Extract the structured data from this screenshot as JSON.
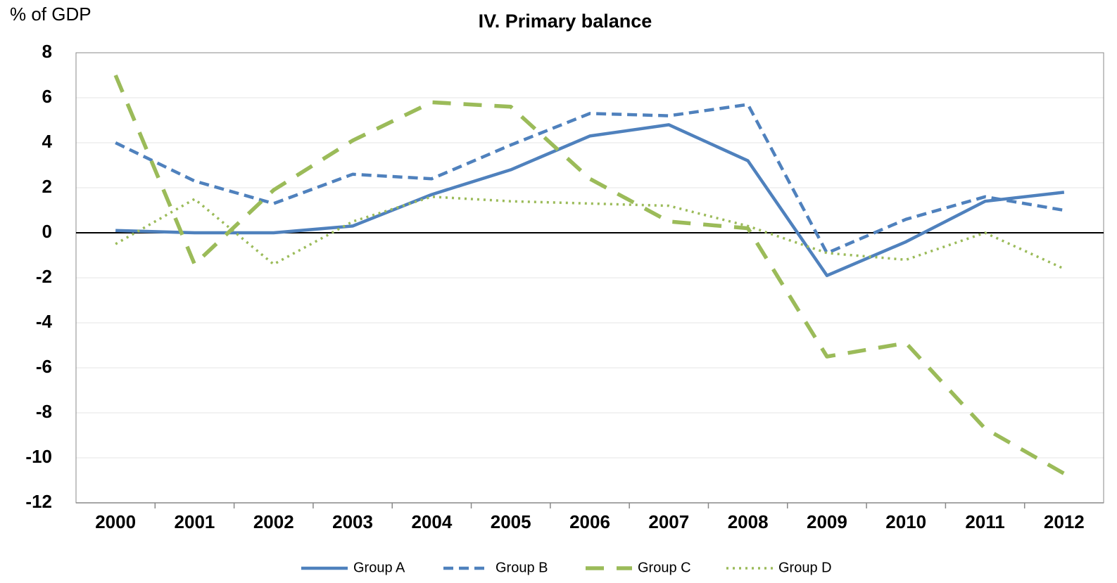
{
  "chart_data": {
    "type": "line",
    "title": "IV. Primary balance",
    "y_label": "% of GDP",
    "categories": [
      "2000",
      "2001",
      "2002",
      "2003",
      "2004",
      "2005",
      "2006",
      "2007",
      "2008",
      "2009",
      "2010",
      "2011",
      "2012"
    ],
    "series": [
      {
        "name": "Group A",
        "color": "#4f81bd",
        "line_style": "solid",
        "values": [
          0.1,
          0,
          0,
          0.3,
          1.7,
          2.8,
          4.3,
          4.8,
          3.2,
          -1.9,
          -0.4,
          1.4,
          1.8
        ]
      },
      {
        "name": "Group B",
        "color": "#4f81bd",
        "line_style": "dash",
        "values": [
          4.0,
          2.3,
          1.3,
          2.6,
          2.4,
          3.9,
          5.3,
          5.2,
          5.7,
          -0.9,
          0.6,
          1.6,
          1.0
        ]
      },
      {
        "name": "Group C",
        "color": "#9bbb59",
        "line_style": "long-dash",
        "values": [
          7.0,
          -1.4,
          1.9,
          4.1,
          5.8,
          5.6,
          2.4,
          0.5,
          0.2,
          -5.5,
          -4.9,
          -8.7,
          -10.7
        ]
      },
      {
        "name": "Group D",
        "color": "#9bbb59",
        "line_style": "dot",
        "values": [
          -0.5,
          1.5,
          -1.4,
          0.5,
          1.6,
          1.4,
          1.3,
          1.2,
          0.3,
          -0.9,
          -1.2,
          0.0,
          -1.6
        ]
      }
    ],
    "ylim": [
      -12,
      8
    ],
    "yticks": [
      -12,
      -10,
      -8,
      -6,
      -4,
      -2,
      0,
      2,
      4,
      6,
      8
    ],
    "grid": true,
    "legend": "bottom"
  }
}
